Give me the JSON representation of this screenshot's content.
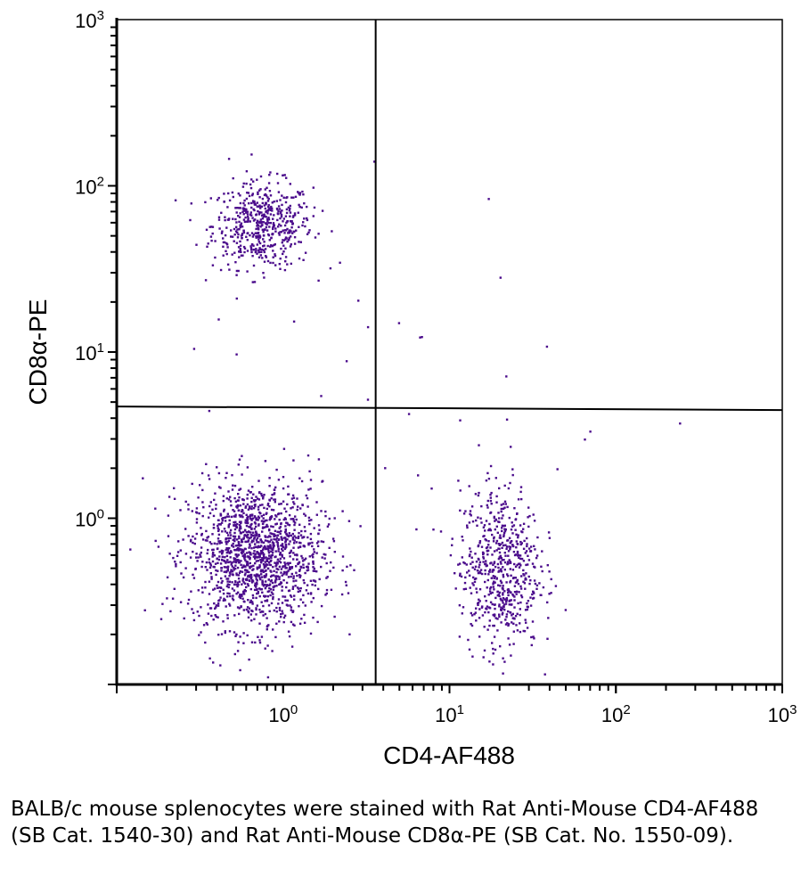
{
  "chart_data": {
    "type": "scatter",
    "title": "",
    "xlabel": "CD4-AF488",
    "ylabel": "CD8α-PE",
    "xscale": "log",
    "yscale": "log",
    "xlim": [
      0.1,
      1000
    ],
    "ylim": [
      0.1,
      1000
    ],
    "x_tick_labels": [
      {
        "base": "10",
        "exp": "0",
        "value": 1
      },
      {
        "base": "10",
        "exp": "1",
        "value": 10
      },
      {
        "base": "10",
        "exp": "2",
        "value": 100
      },
      {
        "base": "10",
        "exp": "3",
        "value": 1000
      }
    ],
    "y_tick_labels": [
      {
        "base": "10",
        "exp": "0",
        "value": 1
      },
      {
        "base": "10",
        "exp": "1",
        "value": 10
      },
      {
        "base": "10",
        "exp": "2",
        "value": 100
      },
      {
        "base": "10",
        "exp": "3",
        "value": 1000
      }
    ],
    "grid": false,
    "point_color": "#4b0c8c",
    "quadrant_gates": {
      "x": 3.6,
      "y": 4.7
    },
    "populations": [
      {
        "name": "CD8+ (upper-left)",
        "center_x": 0.75,
        "center_y": 58,
        "sd_log_x": 0.15,
        "sd_log_y": 0.13,
        "count": 520
      },
      {
        "name": "double negative (lower-left)",
        "center_x": 0.68,
        "center_y": 0.6,
        "sd_log_x": 0.2,
        "sd_log_y": 0.22,
        "count": 1500
      },
      {
        "name": "CD4+ (lower-right)",
        "center_x": 20,
        "center_y": 0.5,
        "sd_log_x": 0.12,
        "sd_log_y": 0.25,
        "count": 620
      },
      {
        "name": "scattered events",
        "center_x": 5,
        "center_y": 5,
        "sd_log_x": 0.7,
        "sd_log_y": 0.7,
        "count": 45
      }
    ]
  },
  "caption": "BALB/c mouse splenocytes were stained with Rat Anti-Mouse CD4-AF488 (SB Cat. 1540-30) and Rat Anti-Mouse CD8α-PE (SB Cat. No. 1550-09)."
}
